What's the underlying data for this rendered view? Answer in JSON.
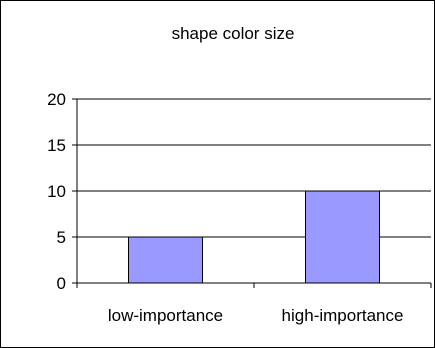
{
  "chart_data": {
    "type": "bar",
    "title": "shape color size",
    "xlabel": "",
    "ylabel": "",
    "categories": [
      "low-importance",
      "high-importance"
    ],
    "values": [
      5,
      10
    ],
    "ylim": [
      0,
      20
    ],
    "yticks": [
      "0",
      "5",
      "10",
      "15",
      "20"
    ],
    "grid": "horizontal",
    "legend": "none",
    "bar_color": "#9999ff",
    "bar_stroke": "#000000"
  }
}
